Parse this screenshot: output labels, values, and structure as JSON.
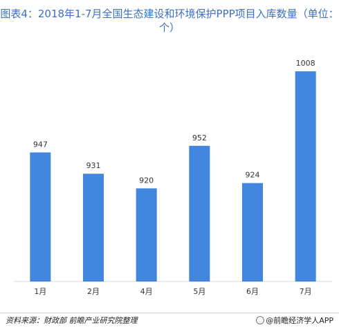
{
  "chart_data": {
    "type": "bar",
    "title": "图表4：2018年1-7月全国生态建设和环境保护PPP项目入库数量（单位：个）",
    "categories": [
      "1月",
      "2月",
      "4月",
      "5月",
      "6月",
      "7月"
    ],
    "values": [
      947,
      931,
      920,
      952,
      924,
      1008
    ],
    "ylim": [
      850,
      1020
    ],
    "color": "#4286e0"
  },
  "footer": {
    "source": "资料来源：财政部 前瞻产业研究院整理",
    "brand": "@前瞻经济学人APP"
  }
}
